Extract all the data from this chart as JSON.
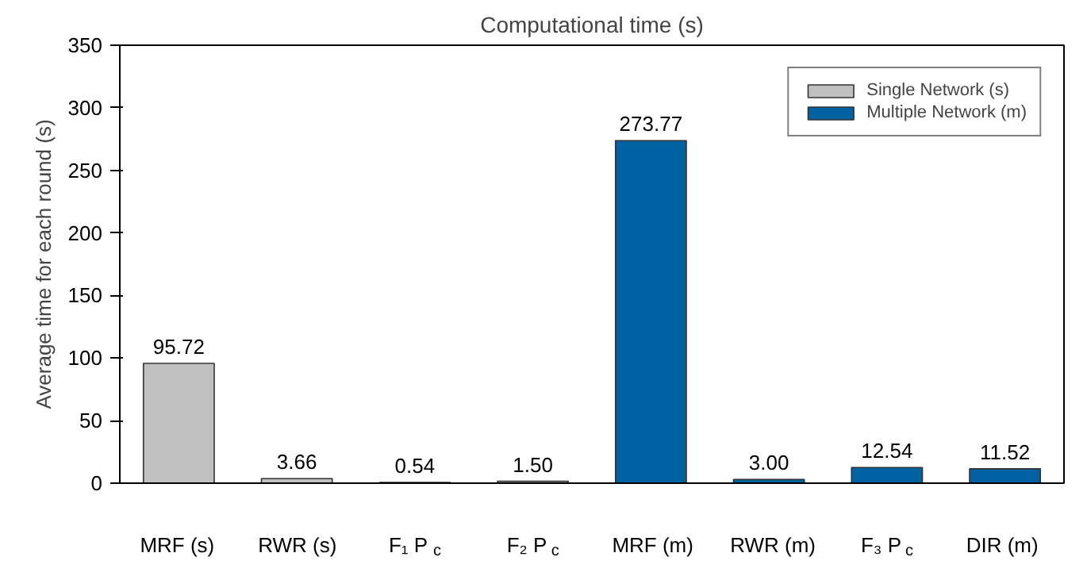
{
  "chart_data": {
    "type": "bar",
    "title": "Computational time (s)",
    "ylabel": "Average time for each round (s)",
    "categories": [
      "MRF (s)",
      "RWR (s)",
      "F₁ P$_{c}$",
      "F₂ P$_{c}$",
      "MRF (m)",
      "RWR (m)",
      "F₃ P$_{c}$",
      "DIR (m)"
    ],
    "series": [
      {
        "name": "Single Network (s)",
        "color": "#c0c0c0",
        "values": [
          95.72,
          3.66,
          0.54,
          1.5,
          null,
          null,
          null,
          null
        ],
        "value_labels": [
          "95.72",
          "3.66",
          "0.54",
          "1.50",
          null,
          null,
          null,
          null
        ]
      },
      {
        "name": "Multiple Network (m)",
        "color": "#0062a0",
        "values": [
          null,
          null,
          null,
          null,
          273.77,
          3.0,
          12.54,
          11.52
        ],
        "value_labels": [
          null,
          null,
          null,
          null,
          "273.77",
          "3.00",
          "12.54",
          "11.52"
        ]
      }
    ],
    "ylim": [
      0,
      350
    ],
    "yticks": [
      0,
      50,
      100,
      150,
      200,
      250,
      300,
      350
    ],
    "grid": false,
    "legend": "top right"
  }
}
